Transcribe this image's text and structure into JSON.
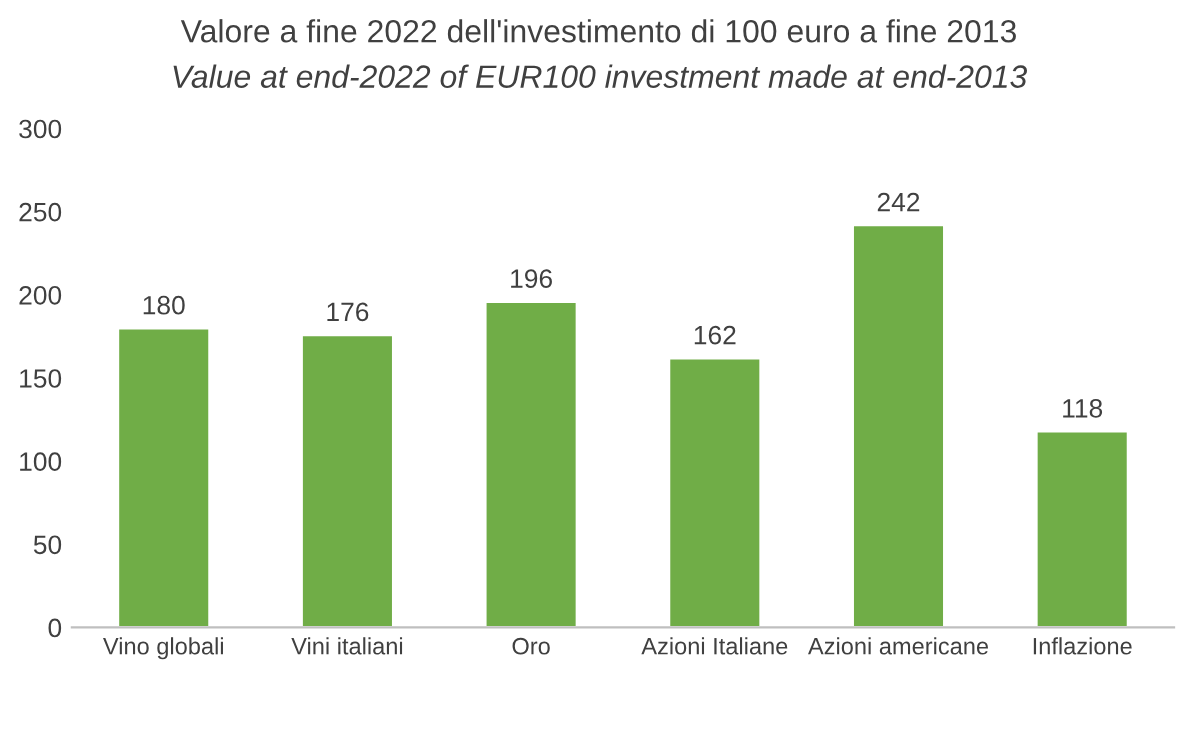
{
  "chart_data": {
    "type": "bar",
    "title": "Valore a fine 2022 dell'investimento di 100 euro a fine 2013",
    "subtitle": "Value at end-2022 of EUR100 investment made at end-2013",
    "categories": [
      "Vino globali",
      "Vini italiani",
      "Oro",
      "Azioni Italiane",
      "Azioni americane",
      "Inflazione"
    ],
    "values": [
      180,
      176,
      196,
      162,
      242,
      118
    ],
    "color": "#70ad47",
    "ylim": [
      0,
      300
    ],
    "yticks": [
      0,
      50,
      100,
      150,
      200,
      250,
      300
    ],
    "grid": false,
    "data_labels": true
  }
}
